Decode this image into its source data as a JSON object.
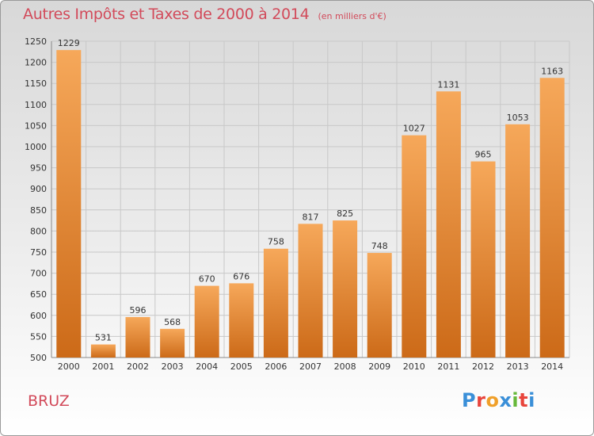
{
  "header": {
    "title": "Autres Impôts et Taxes de 2000 à 2014",
    "subtitle": "(en milliers d'€)"
  },
  "footer": {
    "commune": "BRUZ",
    "logo_text": "Proxiti"
  },
  "colors": {
    "title": "#d24a5a",
    "bar_light": "#f6a85a",
    "bar_dark": "#cc6a18",
    "grid": "#c8c8c8",
    "logo_letters": [
      "#3a8fd8",
      "#e8453c",
      "#f0a02a",
      "#3a8fd8",
      "#66b83a",
      "#e8453c",
      "#3a8fd8"
    ]
  },
  "chart_data": {
    "type": "bar",
    "categories": [
      "2000",
      "2001",
      "2002",
      "2003",
      "2004",
      "2005",
      "2006",
      "2007",
      "2008",
      "2009",
      "2010",
      "2011",
      "2012",
      "2013",
      "2014"
    ],
    "values": [
      1229,
      531,
      596,
      568,
      670,
      676,
      758,
      817,
      825,
      748,
      1027,
      1131,
      965,
      1053,
      1163
    ],
    "ylim": [
      500,
      1250
    ],
    "yticks": [
      500,
      550,
      600,
      650,
      700,
      750,
      800,
      850,
      900,
      950,
      1000,
      1050,
      1100,
      1150,
      1200,
      1250
    ],
    "grid": true,
    "data_labels": true
  }
}
